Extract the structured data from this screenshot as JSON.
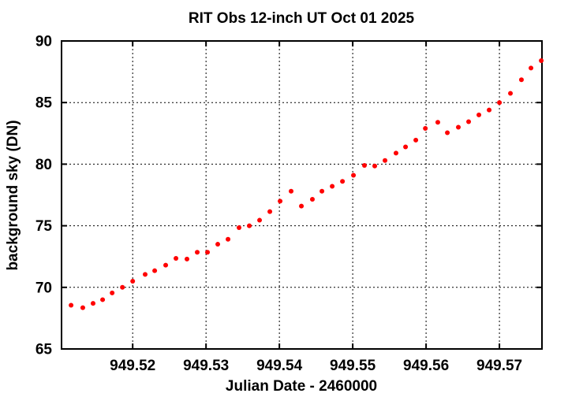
{
  "window": {
    "background": "#ffffff"
  },
  "chart_data": {
    "type": "scatter",
    "title": "RIT Obs 12-inch UT Oct 01 2025",
    "xlabel": "Julian Date - 2460000",
    "ylabel": "background sky (DN)",
    "xlim": [
      949.5103,
      949.5758
    ],
    "ylim": [
      65,
      90
    ],
    "xticks": [
      949.52,
      949.53,
      949.54,
      949.55,
      949.56,
      949.57
    ],
    "yticks": [
      65,
      70,
      75,
      80,
      85,
      90
    ],
    "x_tick_decimals": 2,
    "grid": true,
    "legend": "none",
    "axis_color": "#000000",
    "marker": {
      "shape": "filled-circle",
      "color": "#ff0000",
      "radius_px": 3
    },
    "series": [
      {
        "name": "background sky",
        "points": [
          [
            949.5116,
            68.55
          ],
          [
            949.5132,
            68.35
          ],
          [
            949.5146,
            68.7
          ],
          [
            949.5159,
            69.0
          ],
          [
            949.5172,
            69.55
          ],
          [
            949.5186,
            70.0
          ],
          [
            949.52,
            70.5
          ],
          [
            949.5217,
            71.05
          ],
          [
            949.523,
            71.35
          ],
          [
            949.5245,
            71.8
          ],
          [
            949.5259,
            72.35
          ],
          [
            949.5274,
            72.3
          ],
          [
            949.5288,
            72.85
          ],
          [
            949.5302,
            72.85
          ],
          [
            949.5316,
            73.5
          ],
          [
            949.533,
            73.9
          ],
          [
            949.5345,
            74.85
          ],
          [
            949.5359,
            75.0
          ],
          [
            949.5373,
            75.45
          ],
          [
            949.5387,
            76.15
          ],
          [
            949.5401,
            77.0
          ],
          [
            949.5416,
            77.8
          ],
          [
            949.543,
            76.6
          ],
          [
            949.5445,
            77.15
          ],
          [
            949.5458,
            77.8
          ],
          [
            949.5472,
            78.2
          ],
          [
            949.5486,
            78.6
          ],
          [
            949.5501,
            79.1
          ],
          [
            949.5516,
            79.9
          ],
          [
            949.553,
            79.85
          ],
          [
            949.5544,
            80.3
          ],
          [
            949.5559,
            80.9
          ],
          [
            949.5572,
            81.4
          ],
          [
            949.5586,
            81.95
          ],
          [
            949.5599,
            82.9
          ],
          [
            949.5616,
            83.4
          ],
          [
            949.5629,
            82.55
          ],
          [
            949.5644,
            83.0
          ],
          [
            949.5658,
            83.45
          ],
          [
            949.5672,
            84.0
          ],
          [
            949.5686,
            84.4
          ],
          [
            949.57,
            85.0
          ],
          [
            949.5715,
            85.75
          ],
          [
            949.573,
            86.85
          ],
          [
            949.5743,
            87.8
          ],
          [
            949.5757,
            88.4
          ]
        ]
      }
    ]
  }
}
